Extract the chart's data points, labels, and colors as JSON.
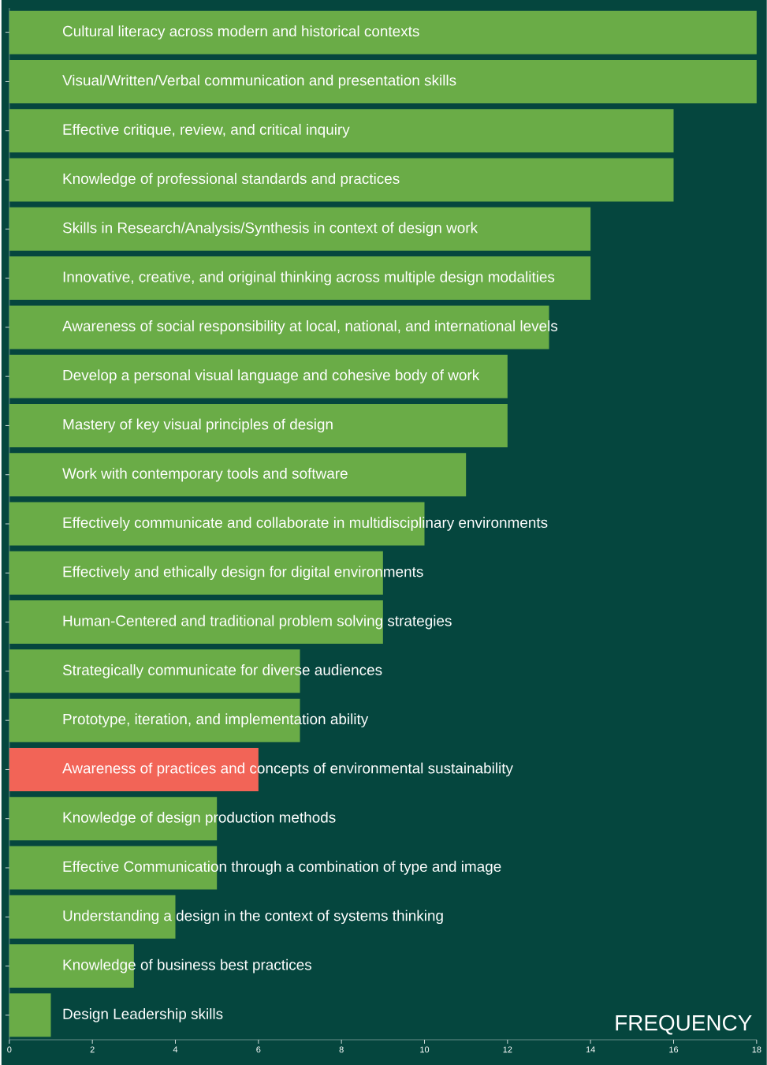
{
  "chart_data": {
    "type": "bar",
    "orientation": "horizontal",
    "xlabel": "FREQUENCY",
    "categories": [
      "Cultural literacy across modern and historical contexts",
      "Visual/Written/Verbal communication and presentation skills",
      "Effective critique, review, and critical inquiry",
      "Knowledge of professional standards and practices",
      "Skills in Research/Analysis/Synthesis in context of design work",
      "Innovative, creative, and original thinking across multiple design modalities",
      "Awareness of social responsibility at local, national, and international levels",
      "Develop a personal visual language and cohesive body of work",
      "Mastery of key visual principles of design",
      "Work with contemporary tools and software",
      "Effectively communicate and collaborate in multidisciplinary environments",
      "Effectively and ethically design for digital environments",
      "Human-Centered and traditional problem solving strategies",
      "Strategically communicate for diverse audiences",
      "Prototype, iteration, and implementation ability",
      "Awareness of practices and concepts of environmental sustainability",
      "Knowledge of design production methods",
      "Effective Communication through a combination of type and image",
      "Understanding a design in the context of systems thinking",
      "Knowledge of business best practices",
      "Design Leadership skills"
    ],
    "values": [
      18,
      18,
      16,
      16,
      14,
      14,
      13,
      12,
      12,
      11,
      10,
      9,
      9,
      7,
      7,
      6,
      5,
      5,
      4,
      3,
      1
    ],
    "colors": [
      "#6aac47",
      "#6aac47",
      "#6aac47",
      "#6aac47",
      "#6aac47",
      "#6aac47",
      "#6aac47",
      "#6aac47",
      "#6aac47",
      "#6aac47",
      "#6aac47",
      "#6aac47",
      "#6aac47",
      "#6aac47",
      "#6aac47",
      "#f26457",
      "#6aac47",
      "#6aac47",
      "#6aac47",
      "#6aac47",
      "#6aac47"
    ],
    "xlim": [
      0,
      18
    ],
    "xticks": [
      0,
      2,
      4,
      6,
      8,
      10,
      12,
      14,
      16,
      18
    ]
  }
}
